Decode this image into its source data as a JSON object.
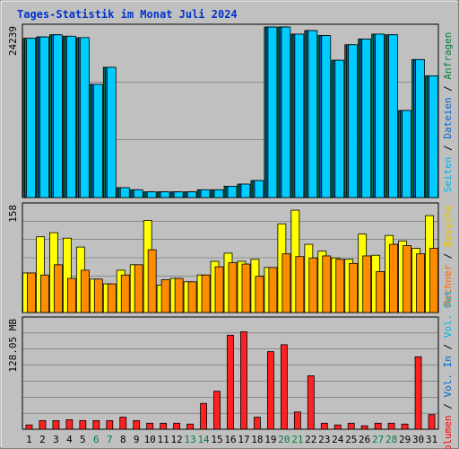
{
  "title": "Tages-Statistik im Monat Juli 2024",
  "chart_data": {
    "type": "bar",
    "title": "Tages-Statistik im Monat Juli 2024",
    "categories": [
      "1",
      "2",
      "3",
      "4",
      "5",
      "6",
      "7",
      "8",
      "9",
      "10",
      "11",
      "12",
      "13",
      "14",
      "15",
      "16",
      "17",
      "18",
      "19",
      "20",
      "21",
      "22",
      "23",
      "24",
      "25",
      "26",
      "27",
      "28",
      "29",
      "30",
      "31"
    ],
    "weekend_days": [
      "6",
      "7",
      "13",
      "14",
      "20",
      "21",
      "27",
      "28"
    ],
    "panels": [
      {
        "name": "top",
        "y_tick_label": "24239",
        "ymax": 24239,
        "right_legend": [
          {
            "text": "Anfragen",
            "color": "#007f3f"
          },
          {
            "text": "Dateien",
            "color": "#0066cc"
          },
          {
            "text": "Seiten",
            "color": "#00b4e6"
          }
        ],
        "series": [
          {
            "name": "Anfragen",
            "color": "#007f3f",
            "values": [
              22500,
              22700,
              23000,
              22800,
              22600,
              16000,
              18400,
              1400,
              1100,
              800,
              800,
              800,
              800,
              1100,
              1100,
              1600,
              1900,
              2400,
              24100,
              24100,
              23100,
              23600,
              22900,
              19400,
              21600,
              22400,
              23100,
              23000,
              12300,
              19500,
              17200
            ]
          },
          {
            "name": "Dateien",
            "color": "#0066cc",
            "values": [
              22500,
              22700,
              23000,
              22800,
              22600,
              16000,
              18400,
              1400,
              1100,
              800,
              800,
              800,
              800,
              1100,
              1100,
              1600,
              1900,
              2400,
              24100,
              24100,
              23100,
              23600,
              22900,
              19400,
              21600,
              22400,
              23100,
              23000,
              12300,
              19500,
              17200
            ]
          },
          {
            "name": "Seiten",
            "color": "#00ccff",
            "values": [
              22500,
              22700,
              23000,
              22800,
              22600,
              16000,
              18400,
              1400,
              1100,
              800,
              800,
              800,
              800,
              1100,
              1100,
              1600,
              1900,
              2400,
              24100,
              24100,
              23100,
              23600,
              22900,
              19400,
              21600,
              22400,
              23100,
              23000,
              12300,
              19500,
              17200
            ]
          }
        ]
      },
      {
        "name": "middle",
        "y_tick_label": "158",
        "ymax": 158,
        "right_legend": [
          {
            "text": "Besuche",
            "color": "#e6c800"
          },
          {
            "text": "Rechner",
            "color": "#ff6600"
          }
        ],
        "series": [
          {
            "name": "Besuche",
            "color": "#ffff00",
            "values": [
              58,
              111,
              117,
              109,
              96,
              49,
              42,
              62,
              70,
              135,
              40,
              50,
              45,
              55,
              75,
              87,
              75,
              78,
              66,
              130,
              150,
              100,
              90,
              80,
              78,
              115,
              84,
              113,
              105,
              94,
              142
            ]
          },
          {
            "name": "Rechner",
            "color": "#ff8c00",
            "values": [
              58,
              55,
              70,
              50,
              62,
              49,
              42,
              55,
              70,
              92,
              48,
              50,
              45,
              55,
              67,
              73,
              71,
              53,
              66,
              86,
              82,
              80,
              83,
              78,
              72,
              83,
              60,
              100,
              98,
              86,
              94
            ]
          }
        ]
      },
      {
        "name": "bottom",
        "y_tick_label": "128.05 MB",
        "ymax": 128.05,
        "right_legend": [
          {
            "text": "Vol. Out",
            "color": "#00b4e6"
          },
          {
            "text": "Vol. In",
            "color": "#0066cc"
          },
          {
            "text": "Volumen",
            "color": "#ff0000"
          }
        ],
        "series": [
          {
            "name": "Volumen",
            "color": "#ff2020",
            "values": [
              5,
              10,
              10,
              11,
              10,
              10,
              10,
              14,
              10,
              7,
              7,
              7,
              6,
              30,
              44,
              109,
              113,
              14,
              90,
              98,
              20,
              62,
              7,
              5,
              7,
              4,
              7,
              7,
              6,
              84,
              17
            ]
          }
        ]
      }
    ]
  }
}
